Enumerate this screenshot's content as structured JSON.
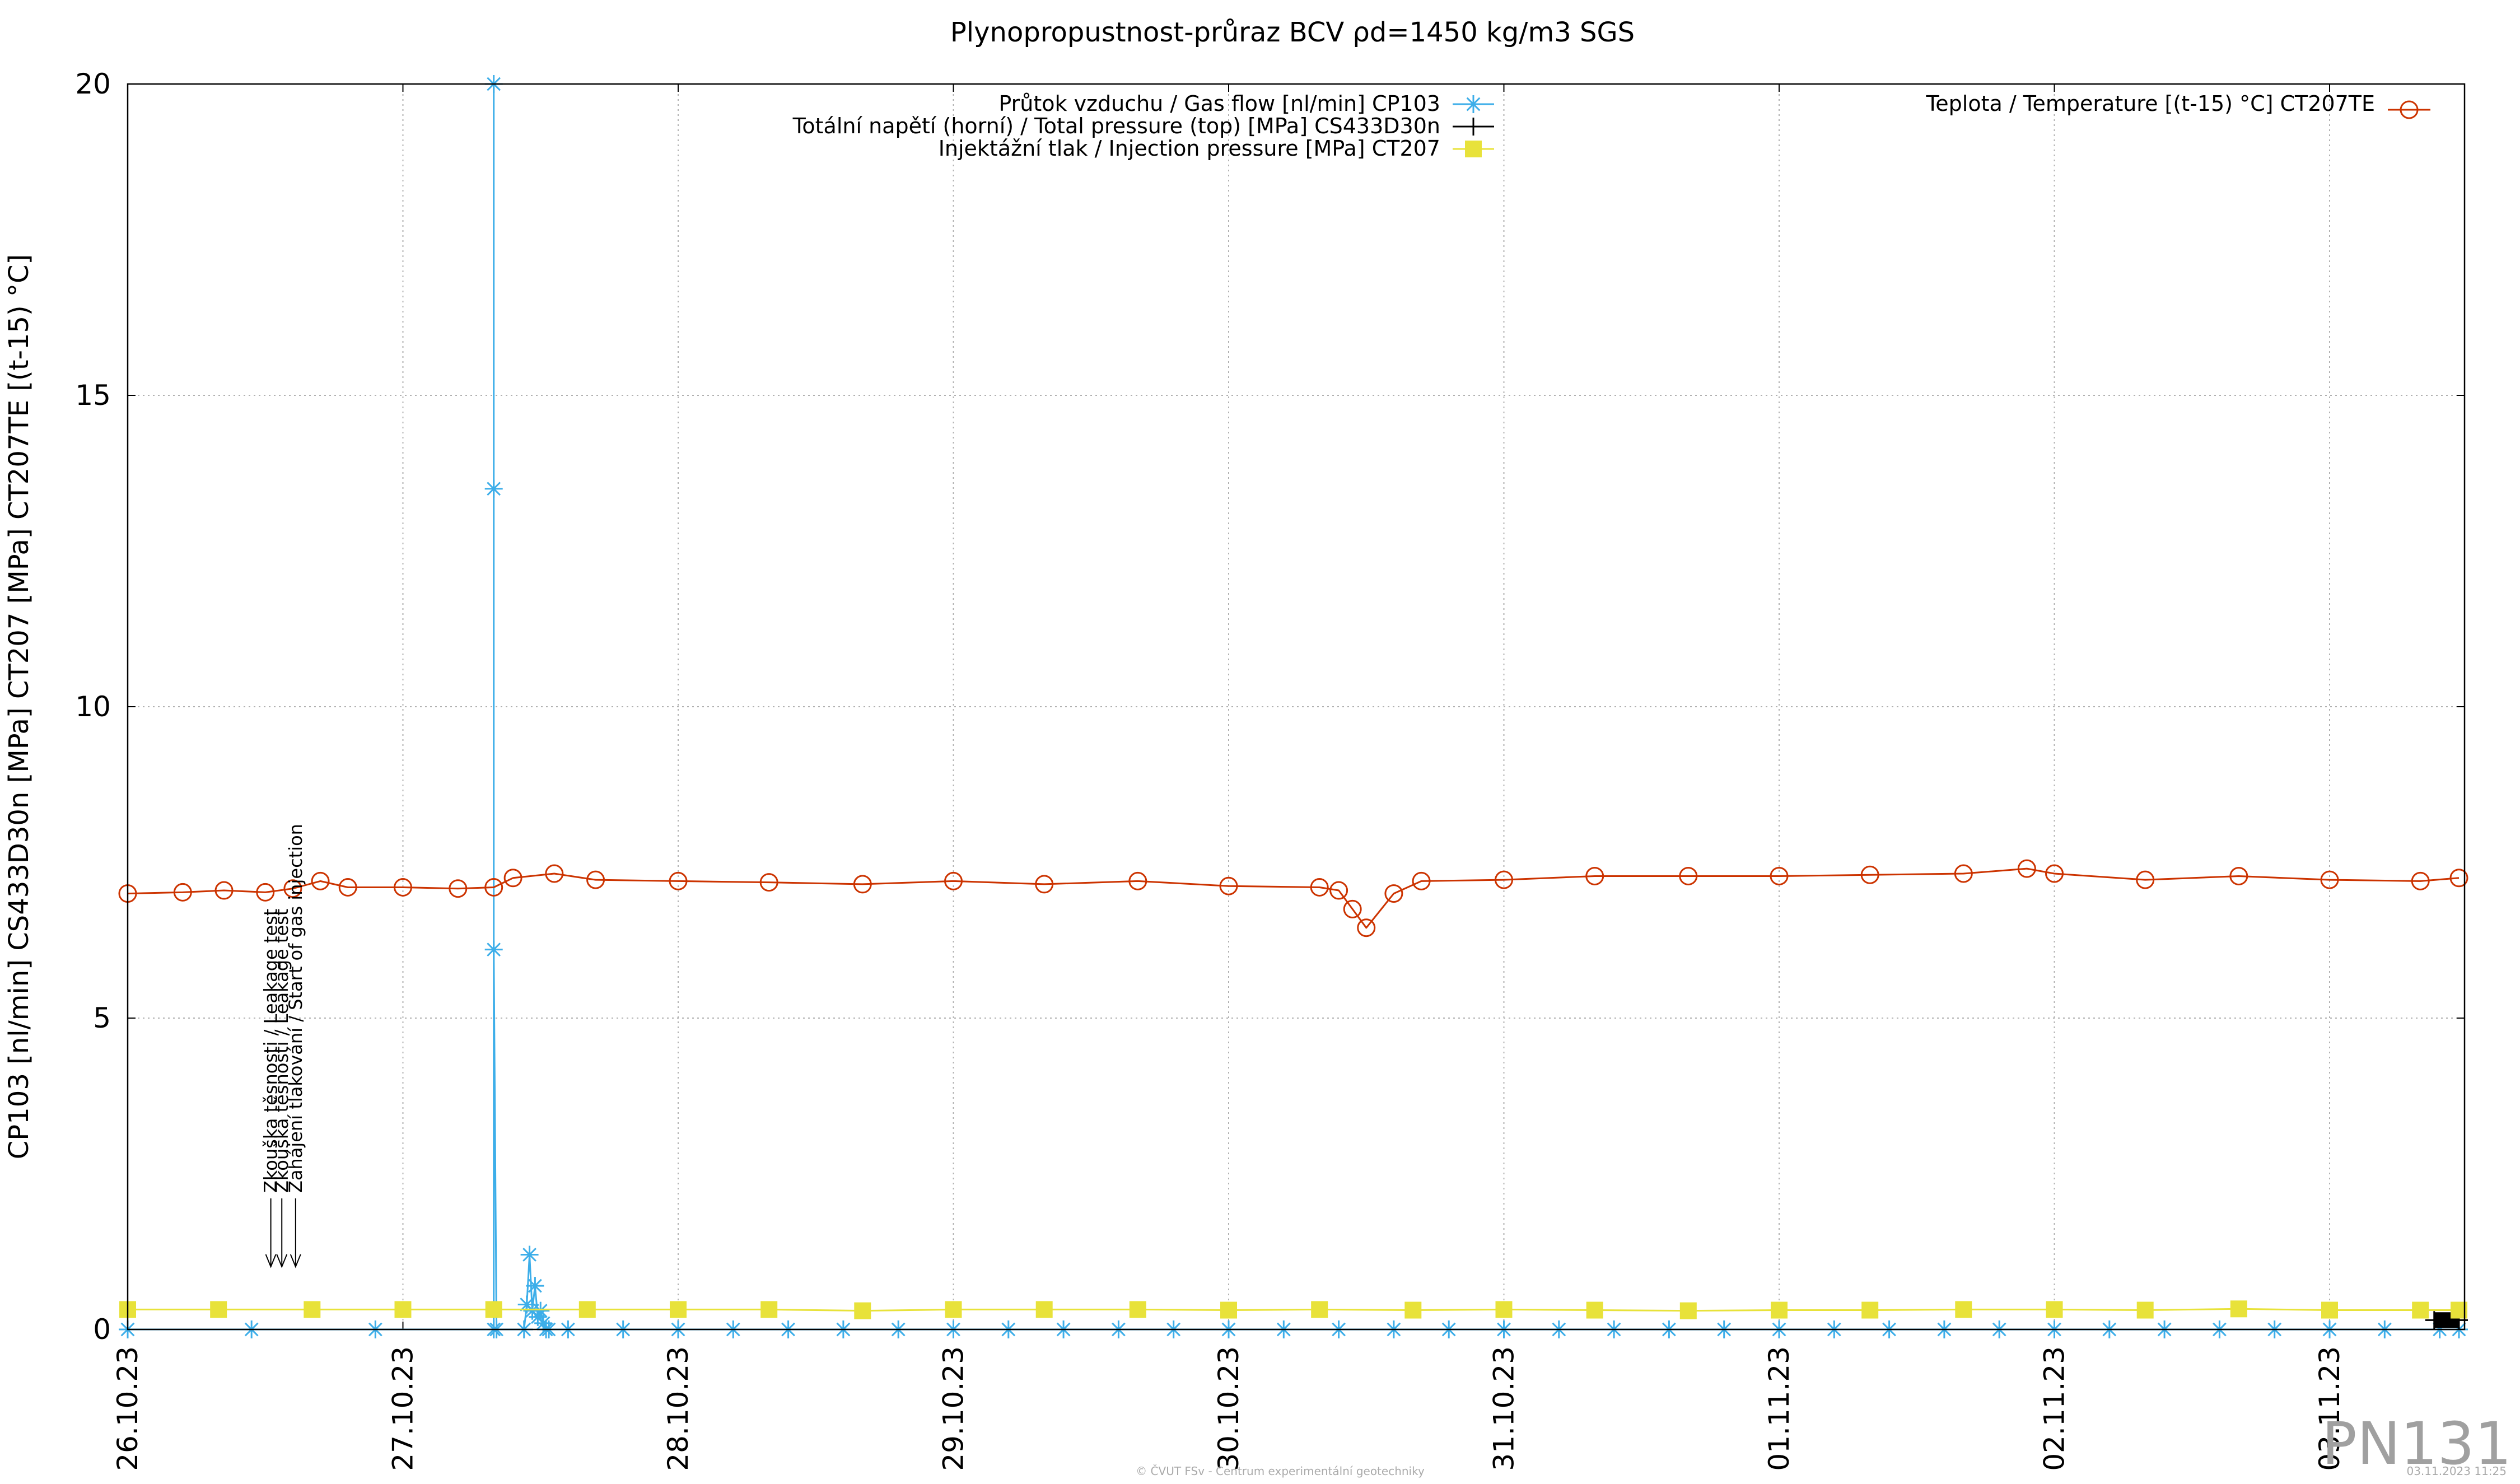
{
  "chart_data": {
    "type": "line",
    "title": "Plynopropustnost-průraz BCV ρd=1450 kg/m3 SGS",
    "ylabel": "CP103 [nl/min] CS433D30n [MPa] CT207 [MPa] CT207TE [(t-15) °C]",
    "xlabel": "",
    "ylim": [
      0,
      20
    ],
    "yticks": [
      0,
      5,
      10,
      15,
      20
    ],
    "xlim": [
      "26.10.23 00:00",
      "03.11.23 11:25"
    ],
    "x_is_date": true,
    "grid": true,
    "xtick_labels": [
      "26.10.23",
      "27.10.23",
      "28.10.23",
      "29.10.23",
      "30.10.23",
      "31.10.23",
      "01.11.23",
      "02.11.23",
      "03.11.23"
    ],
    "series": [
      {
        "name": "Průtok vzduchu / Gas flow [nl/min] CP103",
        "axis": "left",
        "color": "#3daee9",
        "marker": "asterisk",
        "x_days": [
          0.0,
          0.45,
          0.9,
          1.33,
          1.33,
          1.33,
          1.33,
          1.34,
          1.44,
          1.45,
          1.46,
          1.47,
          1.48,
          1.49,
          1.5,
          1.51,
          1.52,
          1.53,
          1.6,
          1.8,
          2.0,
          2.2,
          2.4,
          2.6,
          2.8,
          3.0,
          3.2,
          3.4,
          3.6,
          3.8,
          4.0,
          4.2,
          4.4,
          4.6,
          4.8,
          5.0,
          5.2,
          5.4,
          5.6,
          5.8,
          6.0,
          6.2,
          6.4,
          6.6,
          6.8,
          7.0,
          7.2,
          7.4,
          7.6,
          7.8,
          8.0,
          8.2,
          8.4,
          8.47
        ],
        "values": [
          0.0,
          0.0,
          0.0,
          0.0,
          20.0,
          13.5,
          6.1,
          0.0,
          0.0,
          0.4,
          1.2,
          0.3,
          0.7,
          0.2,
          0.3,
          0.1,
          0.0,
          0.0,
          0.0,
          0.0,
          0.0,
          0.0,
          0.0,
          0.0,
          0.0,
          0.0,
          0.0,
          0.0,
          0.0,
          0.0,
          0.0,
          0.0,
          0.0,
          0.0,
          0.0,
          0.0,
          0.0,
          0.0,
          0.0,
          0.0,
          0.0,
          0.0,
          0.0,
          0.0,
          0.0,
          0.0,
          0.0,
          0.0,
          0.0,
          0.0,
          0.0,
          0.0,
          0.0,
          0.0
        ]
      },
      {
        "name": "Totální napětí (horní) / Total pressure (top) [MPa] CS433D30n",
        "axis": "left",
        "color": "#000000",
        "marker": "plus",
        "x_days": [
          8.38,
          8.47
        ],
        "values": [
          0.15,
          0.15
        ]
      },
      {
        "name": "Injektážní tlak / Injection pressure [MPa] CT207",
        "axis": "left",
        "color": "#e8e23a",
        "marker": "square",
        "x_days": [
          0.0,
          0.33,
          0.67,
          1.0,
          1.33,
          1.67,
          2.0,
          2.33,
          2.67,
          3.0,
          3.33,
          3.67,
          4.0,
          4.33,
          4.67,
          5.0,
          5.33,
          5.67,
          6.0,
          6.33,
          6.67,
          7.0,
          7.33,
          7.67,
          8.0,
          8.33,
          8.47
        ],
        "values": [
          0.32,
          0.32,
          0.32,
          0.32,
          0.32,
          0.32,
          0.32,
          0.32,
          0.3,
          0.32,
          0.32,
          0.32,
          0.31,
          0.32,
          0.31,
          0.32,
          0.31,
          0.3,
          0.31,
          0.31,
          0.32,
          0.32,
          0.31,
          0.33,
          0.31,
          0.31,
          0.31
        ]
      },
      {
        "name": "Teplota / Temperature [(t-15) °C] CT207TE",
        "axis": "right",
        "color": "#cc3300",
        "marker": "circle",
        "x_days": [
          0.0,
          0.2,
          0.35,
          0.5,
          0.6,
          0.7,
          0.8,
          1.0,
          1.2,
          1.33,
          1.4,
          1.55,
          1.7,
          2.0,
          2.33,
          2.67,
          3.0,
          3.33,
          3.67,
          4.0,
          4.33,
          4.4,
          4.45,
          4.5,
          4.6,
          4.7,
          5.0,
          5.33,
          5.67,
          6.0,
          6.33,
          6.67,
          6.9,
          7.0,
          7.33,
          7.67,
          8.0,
          8.33,
          8.47
        ],
        "values": [
          7.0,
          7.02,
          7.05,
          7.02,
          7.08,
          7.2,
          7.1,
          7.1,
          7.08,
          7.1,
          7.25,
          7.32,
          7.22,
          7.2,
          7.18,
          7.15,
          7.2,
          7.15,
          7.2,
          7.12,
          7.1,
          7.05,
          6.75,
          6.45,
          7.0,
          7.2,
          7.22,
          7.28,
          7.28,
          7.28,
          7.3,
          7.32,
          7.4,
          7.32,
          7.22,
          7.28,
          7.22,
          7.2,
          7.25
        ]
      }
    ],
    "annotations": [
      {
        "text": "Zkouška těsnosti / Leakage test",
        "x_days": 0.52
      },
      {
        "text": "Zkouška těsnosti / Leakage test",
        "x_days": 0.56
      },
      {
        "text": "Zahájení tlakování / Start of gas injection",
        "x_days": 0.61
      }
    ],
    "legend_placement": "top"
  },
  "watermark": "PN131",
  "footer_center": "© ČVUT FSv - Centrum experimentální geotechniky",
  "footer_right": "03.11.2023 11:25",
  "colors": {
    "grid": "#b0b0b0",
    "axis": "#000000",
    "background": "#ffffff"
  }
}
